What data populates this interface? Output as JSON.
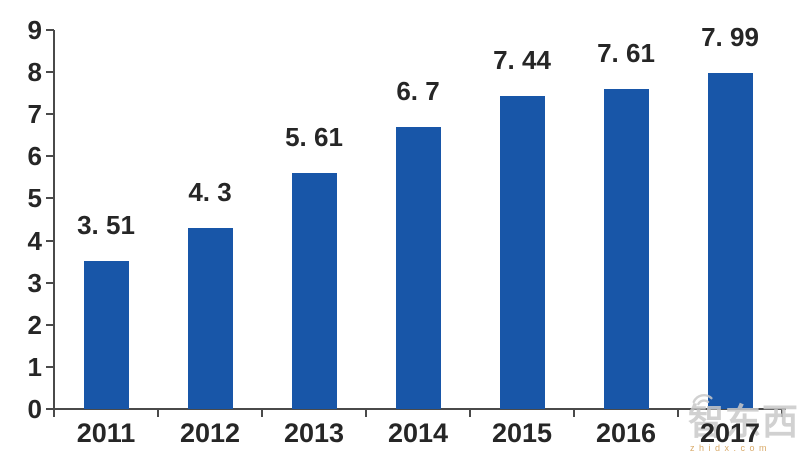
{
  "chart_data": {
    "type": "bar",
    "title": "",
    "xlabel": "",
    "ylabel": "",
    "categories": [
      "2011",
      "2012",
      "2013",
      "2014",
      "2015",
      "2016",
      "2017"
    ],
    "values": [
      3.51,
      4.3,
      5.61,
      6.7,
      7.44,
      7.61,
      7.99
    ],
    "value_labels": [
      "3. 51",
      "4. 3",
      "5. 61",
      "6. 7",
      "7. 44",
      "7. 61",
      "7. 99"
    ],
    "ylim": [
      0,
      9
    ],
    "yticks": [
      0,
      1,
      2,
      3,
      4,
      5,
      6,
      7,
      8,
      9
    ],
    "grid": false,
    "legend": null,
    "colors": {
      "bar": "#1856a8",
      "axis": "#4a4a4a",
      "label_text": "#262626",
      "watermark_gray": "#c9c9c9",
      "watermark_orange": "#d29b4e"
    }
  },
  "watermark": {
    "brand": "智东西",
    "domain": "zhidx.com"
  }
}
